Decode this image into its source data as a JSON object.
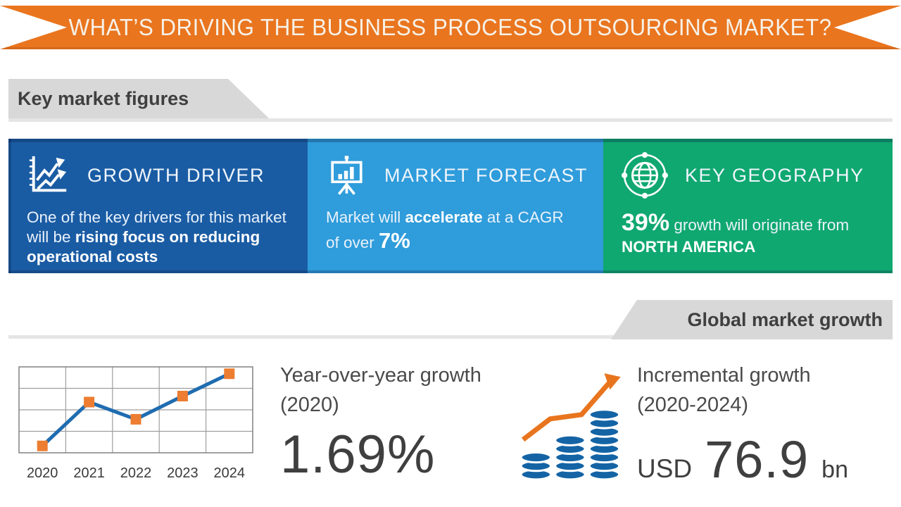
{
  "header_ribbon": {
    "title": "WHAT’S DRIVING THE BUSINESS PROCESS OUTSOURCING MARKET?"
  },
  "section_banners": {
    "key_market_figures": "Key market figures",
    "global_market_growth": "Global market growth"
  },
  "cards": [
    {
      "id": "growth-driver",
      "icon": "line-chart-arrows-icon",
      "title": "GROWTH DRIVER",
      "body": [
        "One of the key drivers for this market will be ",
        "rising focus on reducing operational costs"
      ]
    },
    {
      "id": "market-forecast",
      "icon": "presentation-bar-chart-icon",
      "title": "MARKET FORECAST",
      "body": [
        "Market will ",
        "accelerate",
        " at a CAGR of over ",
        "7%"
      ]
    },
    {
      "id": "key-geography",
      "icon": "globe-orbit-icon",
      "title": "KEY GEOGRAPHY",
      "body": [
        "39%",
        " growth will originate from ",
        "NORTH AMERICA"
      ]
    }
  ],
  "growth_section": {
    "yoy_label": "Year-over-year growth (2020)",
    "yoy_value": "1.69%",
    "incremental_label": "Incremental growth (2020-2024)",
    "incremental_value_prefix": "USD",
    "incremental_value": "76.9",
    "incremental_value_suffix": "bn"
  },
  "chart_data": {
    "type": "line",
    "title": "Year-over-year growth (2020)",
    "x": [
      "2020",
      "2021",
      "2022",
      "2023",
      "2024"
    ],
    "values_relative_0_100": [
      8,
      59,
      39,
      66,
      92
    ],
    "annotation": "1.69% year-over-year growth in 2020",
    "grid": true,
    "grid_rows": 4,
    "grid_cols": 5,
    "y_axis_labels_shown": false,
    "marker": "square",
    "line_color": "#1F6CB0",
    "marker_color": "#ED7D31"
  },
  "colors": {
    "ribbon_orange": "#E9751F",
    "card_blue_dark": "#1A5CA4",
    "card_blue_light": "#2F9CDB",
    "card_green": "#0FA870",
    "banner_gray": "#D8D8D8",
    "banner_strip_gray": "#E5E5E5",
    "heading_text_gray": "#3F3F3F",
    "chart_line_blue": "#1F6CB0",
    "marker_orange": "#ED7D31",
    "coin_blue": "#1464A5",
    "arrow_orange": "#E8751E"
  }
}
